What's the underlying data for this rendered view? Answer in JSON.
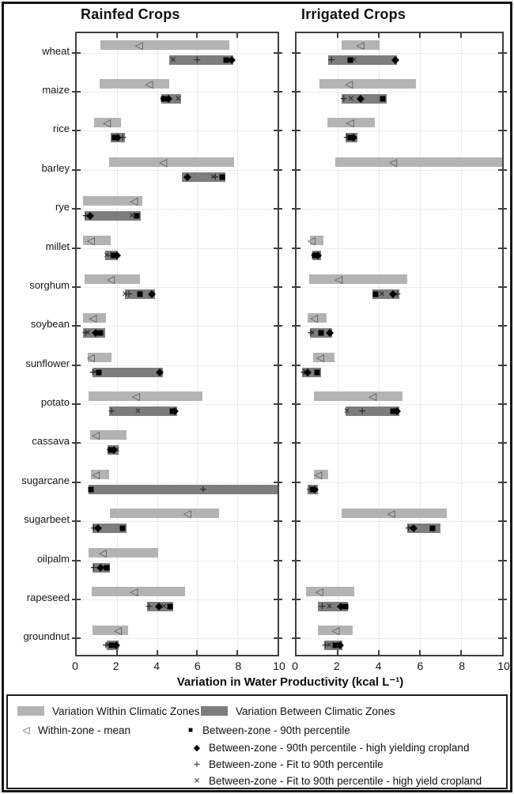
{
  "chart_data": {
    "type": "bar",
    "orientation": "horizontal",
    "xlabel": "Variation in Water Productivity (kcal L⁻¹)",
    "xlim": [
      0,
      10
    ],
    "xticks": [
      0,
      2,
      4,
      6,
      8,
      10
    ],
    "grid": "dotted",
    "colors": {
      "within": "#b3b3b3",
      "between": "#7d7d7d",
      "marker": "#000000"
    },
    "icons": {
      "mean": "◁",
      "p90": "■",
      "p90_hy": "◆",
      "fit": "+",
      "fit_hy": "×"
    },
    "crops": [
      "wheat",
      "maize",
      "rice",
      "barley",
      "rye",
      "millet",
      "sorghum",
      "soybean",
      "sunflower",
      "potato",
      "cassava",
      "sugarcane",
      "sugarbeet",
      "oilpalm",
      "rapeseed",
      "groundnut"
    ],
    "panels": [
      {
        "key": "rainfed",
        "title": "Rainfed Crops"
      },
      {
        "key": "irrigated",
        "title": "Irrigated Crops"
      }
    ],
    "rainfed": [
      {
        "crop": "wheat",
        "within": [
          1.2,
          7.6
        ],
        "mean": 3.1,
        "between": [
          4.6,
          7.8
        ],
        "p90": 7.45,
        "p90_hy": 7.7,
        "fit": 6.0,
        "fit_hy": 4.8
      },
      {
        "crop": "maize",
        "within": [
          1.15,
          4.6
        ],
        "mean": 3.6,
        "between": [
          4.2,
          5.2
        ],
        "p90": 4.35,
        "p90_hy": 4.55,
        "fit": 4.3,
        "fit_hy": 5.05
      },
      {
        "crop": "rice",
        "within": [
          0.85,
          2.2
        ],
        "mean": 1.5,
        "between": [
          1.7,
          2.4
        ],
        "p90": 1.9,
        "p90_hy": 2.05,
        "fit": 2.3,
        "fit_hy": 2.0
      },
      {
        "crop": "barley",
        "within": [
          1.6,
          7.85
        ],
        "mean": 4.3,
        "between": [
          5.25,
          7.4
        ],
        "p90": 7.25,
        "p90_hy": 5.5,
        "fit": 6.9,
        "fit_hy": 6.8
      },
      {
        "crop": "rye",
        "within": [
          0.3,
          3.25
        ],
        "mean": 2.85,
        "between": [
          0.4,
          3.2
        ],
        "p90": 3.0,
        "p90_hy": 0.65,
        "fit": 0.45,
        "fit_hy": 2.75
      },
      {
        "crop": "millet",
        "within": [
          0.3,
          1.7
        ],
        "mean": 0.7,
        "between": [
          1.4,
          2.05
        ],
        "p90": 1.85,
        "p90_hy": 2.0,
        "fit": 1.7,
        "fit_hy": 1.5
      },
      {
        "crop": "sorghum",
        "within": [
          0.4,
          3.15
        ],
        "mean": 1.7,
        "between": [
          2.4,
          3.9
        ],
        "p90": 3.15,
        "p90_hy": 3.75,
        "fit": 2.6,
        "fit_hy": 2.4
      },
      {
        "crop": "soybean",
        "within": [
          0.3,
          1.45
        ],
        "mean": 0.8,
        "between": [
          0.3,
          1.4
        ],
        "p90": 1.2,
        "p90_hy": 0.95,
        "fit": 0.45,
        "fit_hy": 0.55
      },
      {
        "crop": "sunflower",
        "within": [
          0.55,
          1.75
        ],
        "mean": 0.7,
        "between": [
          0.8,
          4.3
        ],
        "p90": 1.1,
        "p90_hy": 4.15,
        "fit": 0.8,
        "fit_hy": 0.9
      },
      {
        "crop": "potato",
        "within": [
          0.6,
          6.25
        ],
        "mean": 2.95,
        "between": [
          1.6,
          5.0
        ],
        "p90": 4.75,
        "p90_hy": 4.9,
        "fit": 1.75,
        "fit_hy": 3.05
      },
      {
        "crop": "cassava",
        "within": [
          0.65,
          2.5
        ],
        "mean": 0.95,
        "between": [
          1.55,
          2.1
        ],
        "p90": 1.7,
        "p90_hy": 1.85,
        "fit": 1.65,
        "fit_hy": 2.0
      },
      {
        "crop": "sugarcane",
        "within": [
          0.7,
          1.6
        ],
        "mean": 0.95,
        "between": [
          0.6,
          10.0
        ],
        "p90": 0.7,
        "p90_hy": null,
        "fit": 6.3,
        "fit_hy": null
      },
      {
        "crop": "sugarbeet",
        "within": [
          1.65,
          7.1
        ],
        "mean": 5.5,
        "between": [
          0.8,
          2.5
        ],
        "p90": 2.3,
        "p90_hy": 1.05,
        "fit": 0.85,
        "fit_hy": 0.9
      },
      {
        "crop": "oilpalm",
        "within": [
          0.6,
          4.05
        ],
        "mean": 1.3,
        "between": [
          0.8,
          1.65
        ],
        "p90": 1.5,
        "p90_hy": 1.2,
        "fit": 0.85,
        "fit_hy": 1.35
      },
      {
        "crop": "rapeseed",
        "within": [
          0.75,
          5.4
        ],
        "mean": 2.85,
        "between": [
          3.5,
          4.8
        ],
        "p90": 4.65,
        "p90_hy": 4.1,
        "fit": 3.6,
        "fit_hy": 4.35
      },
      {
        "crop": "groundnut",
        "within": [
          0.8,
          2.55
        ],
        "mean": 2.05,
        "between": [
          1.5,
          2.1
        ],
        "p90": 1.75,
        "p90_hy": 1.95,
        "fit": 1.45,
        "fit_hy": 1.55
      }
    ],
    "irrigated": [
      {
        "crop": "wheat",
        "within": [
          2.2,
          4.05
        ],
        "mean": 3.1,
        "between": [
          1.55,
          4.9
        ],
        "p90": 2.6,
        "p90_hy": 4.8,
        "fit": 1.7,
        "fit_hy": 2.8
      },
      {
        "crop": "maize",
        "within": [
          1.1,
          5.8
        ],
        "mean": 2.55,
        "between": [
          2.2,
          4.4
        ],
        "p90": 4.2,
        "p90_hy": 3.1,
        "fit": 2.3,
        "fit_hy": 2.65
      },
      {
        "crop": "rice",
        "within": [
          1.5,
          3.8
        ],
        "mean": 2.6,
        "between": [
          2.4,
          2.95
        ],
        "p90": 2.6,
        "p90_hy": 2.75,
        "fit": 2.45,
        "fit_hy": 2.6
      },
      {
        "crop": "barley",
        "within": [
          1.9,
          10.0
        ],
        "mean": 4.7,
        "between": null,
        "p90": null,
        "p90_hy": null,
        "fit": null,
        "fit_hy": null
      },
      {
        "crop": "rye",
        "within": null,
        "mean": null,
        "between": null,
        "p90": null,
        "p90_hy": null,
        "fit": null,
        "fit_hy": null
      },
      {
        "crop": "millet",
        "within": [
          0.65,
          1.3
        ],
        "mean": 0.72,
        "between": [
          0.75,
          1.2
        ],
        "p90": 0.9,
        "p90_hy": 1.05,
        "fit": 0.85,
        "fit_hy": 0.95
      },
      {
        "crop": "sorghum",
        "within": [
          0.6,
          5.4
        ],
        "mean": 2.05,
        "between": [
          3.7,
          5.0
        ],
        "p90": 3.85,
        "p90_hy": 4.7,
        "fit": 4.9,
        "fit_hy": 4.15
      },
      {
        "crop": "soybean",
        "within": [
          0.55,
          1.45
        ],
        "mean": 0.85,
        "between": [
          0.65,
          1.75
        ],
        "p90": 1.2,
        "p90_hy": 1.6,
        "fit": 0.7,
        "fit_hy": 0.75
      },
      {
        "crop": "sunflower",
        "within": [
          0.8,
          1.85
        ],
        "mean": 1.15,
        "between": [
          0.25,
          1.2
        ],
        "p90": 1.0,
        "p90_hy": 0.55,
        "fit": 0.35,
        "fit_hy": 0.45
      },
      {
        "crop": "potato",
        "within": [
          0.85,
          5.15
        ],
        "mean": 3.7,
        "between": [
          2.4,
          5.0
        ],
        "p90": 4.7,
        "p90_hy": 4.9,
        "fit": 3.2,
        "fit_hy": 2.45
      },
      {
        "crop": "cassava",
        "within": null,
        "mean": null,
        "between": null,
        "p90": null,
        "p90_hy": null,
        "fit": null,
        "fit_hy": null
      },
      {
        "crop": "sugarcane",
        "within": [
          0.85,
          1.55
        ],
        "mean": 1.05,
        "between": [
          0.55,
          1.05
        ],
        "p90": 0.8,
        "p90_hy": 0.9,
        "fit": 0.65,
        "fit_hy": 0.75
      },
      {
        "crop": "sugarbeet",
        "within": [
          2.2,
          7.3
        ],
        "mean": 4.6,
        "between": [
          5.4,
          7.0
        ],
        "p90": 6.6,
        "p90_hy": 5.7,
        "fit": 5.45,
        "fit_hy": 5.5
      },
      {
        "crop": "oilpalm",
        "within": null,
        "mean": null,
        "between": null,
        "p90": null,
        "p90_hy": null,
        "fit": null,
        "fit_hy": null
      },
      {
        "crop": "rapeseed",
        "within": [
          0.45,
          2.8
        ],
        "mean": 1.1,
        "between": [
          1.05,
          2.5
        ],
        "p90": 2.4,
        "p90_hy": 2.15,
        "fit": 1.25,
        "fit_hy": 1.6
      },
      {
        "crop": "groundnut",
        "within": [
          1.05,
          2.75
        ],
        "mean": 1.9,
        "between": [
          1.35,
          2.25
        ],
        "p90": 1.9,
        "p90_hy": 2.1,
        "fit": 1.4,
        "fit_hy": 1.6
      }
    ]
  },
  "legend": {
    "within": "Variation Within Climatic Zones",
    "between": "Variation Between Climatic Zones",
    "mean": "Within-zone - mean",
    "p90": "Between-zone - 90th percentile",
    "p90_hy": "Between-zone - 90th percentile - high yielding cropland",
    "fit": "Between-zone - Fit to 90th percentile",
    "fit_hy": "Between-zone - Fit to 90th percentile - high yield cropland"
  }
}
